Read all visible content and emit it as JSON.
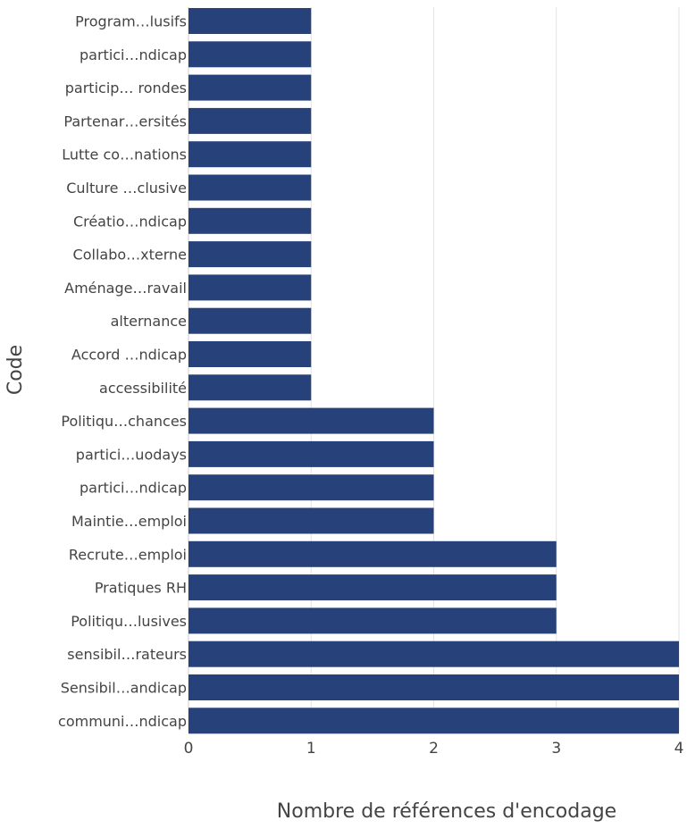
{
  "chart_data": {
    "type": "bar",
    "orientation": "horizontal",
    "categories": [
      "Program…lusifs",
      "partici…ndicap",
      "particip… rondes",
      "Partenar…ersités",
      "Lutte co…nations",
      "Culture …clusive",
      "Créatio…ndicap",
      "Collabo…xterne",
      "Aménage…ravail",
      "alternance",
      "Accord …ndicap",
      "accessibilité",
      "Politiqu…chances",
      "partici…uodays",
      "partici…ndicap",
      "Maintie…emploi",
      "Recrute…emploi",
      "Pratiques RH",
      "Politiqu…lusives",
      "sensibil…rateurs",
      "Sensibil…andicap",
      "communi…ndicap"
    ],
    "values": [
      1,
      1,
      1,
      1,
      1,
      1,
      1,
      1,
      1,
      1,
      1,
      1,
      2,
      2,
      2,
      2,
      3,
      3,
      3,
      4,
      4,
      4
    ],
    "xlabel": "Nombre de références d'encodage",
    "ylabel": "Code",
    "xlim": [
      0,
      4
    ],
    "xticks": [
      "0",
      "1",
      "2",
      "3",
      "4"
    ],
    "grid": "vertical",
    "bar_color": "#27427a",
    "grid_color": "#e3e3e3"
  }
}
